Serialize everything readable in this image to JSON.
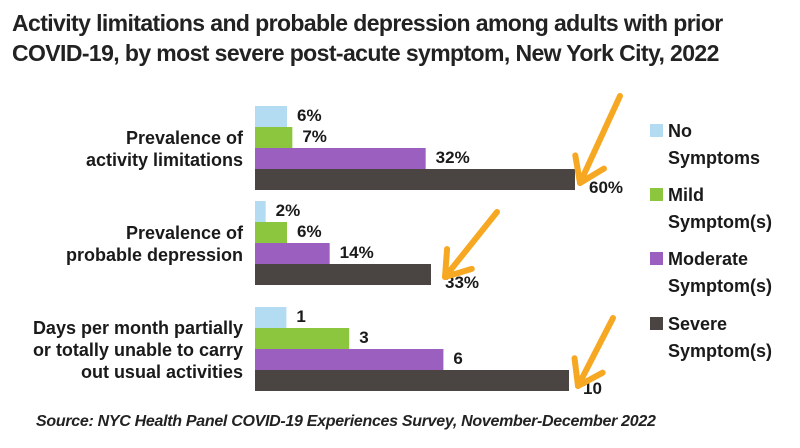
{
  "chart_data": {
    "type": "bar",
    "orientation": "horizontal",
    "title": "Activity limitations and probable depression among adults with prior COVID-19, by most severe post-acute symptom, New York City, 2022",
    "title_lines": [
      "Activity limitations and probable depression among adults with prior",
      "COVID-19, by most severe post-acute symptom, New York City, 2022"
    ],
    "categories": [
      {
        "label_lines": [
          "Prevalence of",
          "activity limitations"
        ],
        "unit": "%"
      },
      {
        "label_lines": [
          "Prevalence of",
          "probable depression"
        ],
        "unit": "%"
      },
      {
        "label_lines": [
          "Days per month partially",
          "or totally unable to carry",
          "out usual activities"
        ],
        "unit": ""
      }
    ],
    "series": [
      {
        "name": "No Symptoms",
        "legend_lines": [
          "No",
          "Symptoms"
        ],
        "color": "#b3dcf3",
        "values": [
          6,
          2,
          1
        ]
      },
      {
        "name": "Mild Symptom(s)",
        "legend_lines": [
          "Mild",
          "Symptom(s)"
        ],
        "color": "#8cc63f",
        "values": [
          7,
          6,
          3
        ]
      },
      {
        "name": "Moderate Symptom(s)",
        "legend_lines": [
          "Moderate",
          "Symptom(s)"
        ],
        "color": "#9b5fc0",
        "values": [
          32,
          14,
          6
        ]
      },
      {
        "name": "Severe Symptom(s)",
        "legend_lines": [
          "Severe",
          "Symptom(s)"
        ],
        "color": "#4a4542",
        "values": [
          60,
          33,
          10
        ]
      }
    ],
    "data_labels": [
      [
        "6%",
        "7%",
        "32%",
        "60%"
      ],
      [
        "2%",
        "6%",
        "14%",
        "33%"
      ],
      [
        "1",
        "3",
        "6",
        "10"
      ]
    ],
    "annotation_color": "#f7a823",
    "legend_position": "right",
    "grid": false,
    "axes_visible": false
  },
  "source": "Source: NYC Health Panel COVID-19 Experiences Survey, November-December 2022"
}
